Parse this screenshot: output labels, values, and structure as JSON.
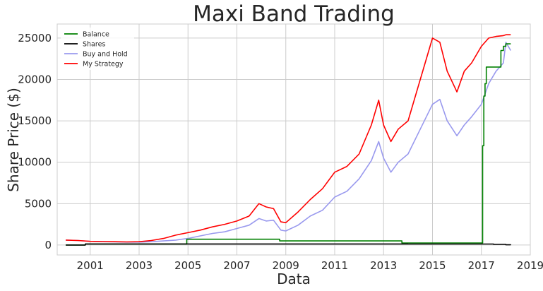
{
  "chart_data": {
    "type": "line",
    "title": "Maxi Band Trading",
    "xlabel": "Data",
    "ylabel": "Share Price ($)",
    "xlim": [
      1999.65,
      2019.0
    ],
    "ylim": [
      -1200,
      26700
    ],
    "x_ticks": [
      "2001",
      "2003",
      "2005",
      "2007",
      "2009",
      "2011",
      "2013",
      "2015",
      "2017",
      "2019"
    ],
    "y_ticks": [
      "0",
      "5000",
      "10000",
      "15000",
      "20000",
      "25000"
    ],
    "grid": true,
    "legend_position": "top-left",
    "series": [
      {
        "name": "Balance",
        "color": "#008000",
        "step": true,
        "x": [
          2000.0,
          2000.8,
          2001.0,
          2002.0,
          2003.0,
          2004.0,
          2004.95,
          2005.0,
          2006.0,
          2007.0,
          2008.0,
          2008.75,
          2009.0,
          2010.0,
          2011.0,
          2012.0,
          2013.0,
          2013.75,
          2014.0,
          2015.0,
          2016.0,
          2017.0,
          2017.05,
          2017.1,
          2017.15,
          2017.2,
          2017.3,
          2017.6,
          2017.8,
          2017.9,
          2018.0,
          2018.2
        ],
        "y": [
          0,
          120,
          120,
          120,
          120,
          120,
          700,
          700,
          700,
          700,
          700,
          500,
          500,
          500,
          500,
          500,
          500,
          250,
          250,
          250,
          250,
          250,
          12000,
          18000,
          19500,
          21500,
          21500,
          21500,
          23500,
          24000,
          24300,
          24300
        ]
      },
      {
        "name": "Shares",
        "color": "#000000",
        "step": true,
        "x": [
          2000.0,
          2000.8,
          2001.0,
          2002.0,
          2003.0,
          2004.0,
          2005.0,
          2006.0,
          2007.0,
          2008.0,
          2009.0,
          2010.0,
          2011.0,
          2012.0,
          2013.0,
          2013.75,
          2014.0,
          2015.0,
          2016.0,
          2017.0,
          2017.5,
          2018.0,
          2018.2
        ],
        "y": [
          0,
          130,
          130,
          130,
          130,
          130,
          130,
          130,
          130,
          130,
          130,
          130,
          130,
          130,
          130,
          130,
          120,
          120,
          120,
          120,
          80,
          30,
          20
        ]
      },
      {
        "name": "Buy and Hold",
        "color": "#9999ee",
        "step": false,
        "x": [
          2000.0,
          2000.5,
          2001.0,
          2001.5,
          2002.0,
          2002.5,
          2003.0,
          2003.5,
          2004.0,
          2004.5,
          2005.0,
          2005.5,
          2006.0,
          2006.5,
          2007.0,
          2007.5,
          2007.9,
          2008.2,
          2008.5,
          2008.8,
          2009.0,
          2009.5,
          2010.0,
          2010.5,
          2011.0,
          2011.5,
          2012.0,
          2012.5,
          2012.8,
          2013.0,
          2013.3,
          2013.6,
          2014.0,
          2014.5,
          2015.0,
          2015.3,
          2015.6,
          2016.0,
          2016.3,
          2016.6,
          2017.0,
          2017.3,
          2017.6,
          2017.9,
          2018.0,
          2018.2
        ],
        "y": [
          600,
          550,
          450,
          400,
          380,
          350,
          350,
          400,
          500,
          600,
          800,
          1100,
          1400,
          1600,
          2000,
          2400,
          3200,
          2900,
          3000,
          1800,
          1700,
          2400,
          3500,
          4200,
          5800,
          6500,
          8000,
          10200,
          12500,
          10500,
          8800,
          10000,
          11000,
          14000,
          17000,
          17600,
          15000,
          13200,
          14500,
          15500,
          17000,
          19500,
          21000,
          22000,
          24500,
          23500
        ]
      },
      {
        "name": "My Strategy",
        "color": "#ff0000",
        "step": false,
        "x": [
          2000.0,
          2000.5,
          2001.0,
          2001.5,
          2002.0,
          2002.5,
          2003.0,
          2003.5,
          2004.0,
          2004.5,
          2005.0,
          2005.5,
          2006.0,
          2006.5,
          2007.0,
          2007.5,
          2007.9,
          2008.2,
          2008.5,
          2008.8,
          2009.0,
          2009.5,
          2010.0,
          2010.5,
          2011.0,
          2011.5,
          2012.0,
          2012.5,
          2012.8,
          2013.0,
          2013.3,
          2013.6,
          2014.0,
          2014.5,
          2015.0,
          2015.3,
          2015.6,
          2016.0,
          2016.3,
          2016.6,
          2017.0,
          2017.3,
          2017.6,
          2017.9,
          2018.0,
          2018.2
        ],
        "y": [
          600,
          550,
          450,
          420,
          400,
          380,
          400,
          550,
          800,
          1200,
          1500,
          1800,
          2200,
          2500,
          2900,
          3500,
          5000,
          4600,
          4400,
          2800,
          2700,
          4000,
          5500,
          6800,
          8800,
          9500,
          11000,
          14500,
          17500,
          14500,
          12500,
          14000,
          15000,
          20000,
          25000,
          24500,
          21000,
          18500,
          21000,
          22000,
          24000,
          25000,
          25200,
          25300,
          25400,
          25400
        ]
      }
    ]
  }
}
